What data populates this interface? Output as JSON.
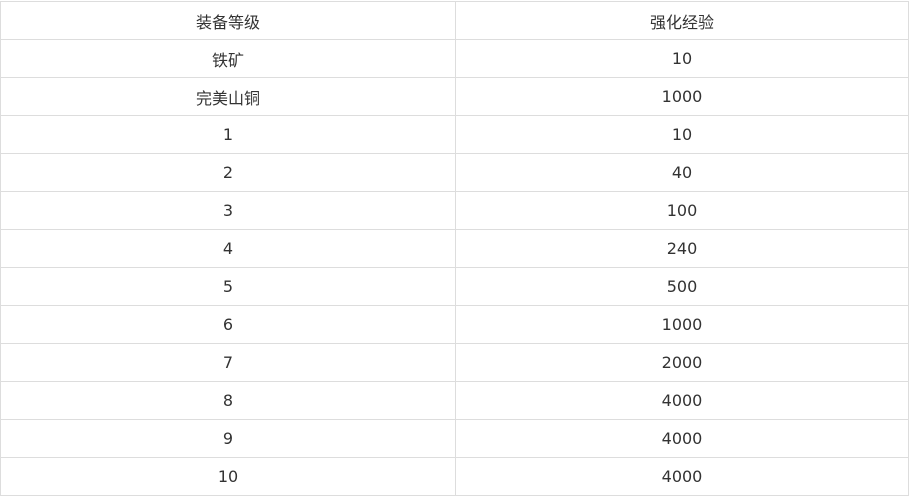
{
  "table": {
    "headers": [
      "装备等级",
      "强化经验"
    ],
    "rows": [
      [
        "铁矿",
        "10"
      ],
      [
        "完美山铜",
        "1000"
      ],
      [
        "1",
        "10"
      ],
      [
        "2",
        "40"
      ],
      [
        "3",
        "100"
      ],
      [
        "4",
        "240"
      ],
      [
        "5",
        "500"
      ],
      [
        "6",
        "1000"
      ],
      [
        "7",
        "2000"
      ],
      [
        "8",
        "4000"
      ],
      [
        "9",
        "4000"
      ],
      [
        "10",
        "4000"
      ]
    ]
  }
}
